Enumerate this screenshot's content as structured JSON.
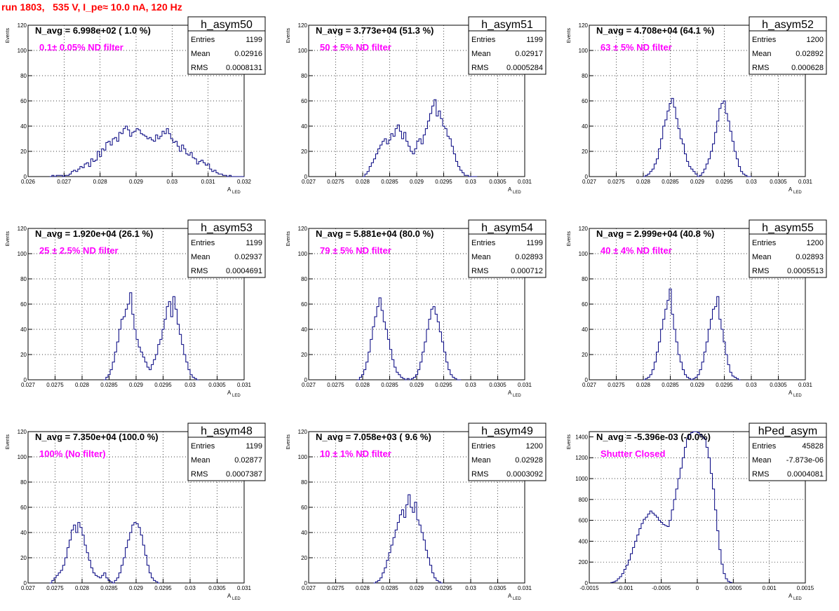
{
  "page": {
    "title": "run 1803,   535 V, I_pe≈ 10.0 nA, 120 Hz",
    "ylabel": "Events",
    "xlabel_main": "A",
    "xlabel_sub": "LED"
  },
  "colors": {
    "title": "#ff0000",
    "histogram": "#00007f",
    "annotation": "#ff00ff",
    "grid": "#000000"
  },
  "chart_data": [
    {
      "type": "bar",
      "hist_name": "h_asym50",
      "navg": "N_avg = 6.998e+02 ( 1.0 %)",
      "filter": "0.1± 0.05% ND filter",
      "stats": {
        "entries": "1199",
        "mean": "0.02916",
        "rms": "0.0008131"
      },
      "xlim": [
        0.026,
        0.032
      ],
      "ylim": [
        0,
        120
      ],
      "xticks": [
        "0.026",
        "0.027",
        "0.028",
        "0.029",
        "0.03",
        "0.031",
        "0.032"
      ],
      "yticks": [
        "0",
        "20",
        "40",
        "60",
        "80",
        "100",
        "120"
      ],
      "bin_start": 0.0266,
      "bin_width": 6e-05,
      "values": [
        0,
        1,
        0,
        1,
        1,
        1,
        0,
        1,
        1,
        2,
        4,
        5,
        4,
        6,
        8,
        7,
        10,
        11,
        8,
        14,
        12,
        13,
        20,
        16,
        22,
        21,
        27,
        28,
        25,
        30,
        31,
        28,
        35,
        34,
        38,
        40,
        37,
        32,
        35,
        36,
        38,
        37,
        34,
        33,
        32,
        30,
        31,
        29,
        28,
        33,
        30,
        32,
        36,
        34,
        38,
        34,
        30,
        27,
        28,
        24,
        20,
        25,
        22,
        18,
        17,
        19,
        15,
        14,
        10,
        12,
        13,
        11,
        9,
        10,
        6,
        4,
        5,
        3,
        2,
        2,
        1,
        1,
        0,
        1,
        0,
        0,
        0,
        0,
        0,
        0
      ]
    },
    {
      "type": "bar",
      "hist_name": "h_asym51",
      "navg": "N_avg = 3.773e+04 (51.3 %)",
      "filter": "50 ± 5% ND filter",
      "stats": {
        "entries": "1199",
        "mean": "0.02917",
        "rms": "0.0005284"
      },
      "xlim": [
        0.027,
        0.031
      ],
      "ylim": [
        0,
        120
      ],
      "xticks": [
        "0.027",
        "0.0275",
        "0.028",
        "0.0285",
        "0.029",
        "0.0295",
        "0.03",
        "0.0305",
        "0.031"
      ],
      "yticks": [
        "0",
        "20",
        "40",
        "60",
        "80",
        "100",
        "120"
      ],
      "bin_start": 0.028,
      "bin_width": 4e-05,
      "values": [
        0,
        2,
        4,
        8,
        11,
        14,
        18,
        22,
        25,
        28,
        30,
        26,
        29,
        34,
        32,
        38,
        41,
        36,
        30,
        35,
        28,
        24,
        20,
        18,
        22,
        28,
        30,
        26,
        33,
        38,
        44,
        50,
        56,
        61,
        48,
        52,
        46,
        40,
        38,
        32,
        30,
        24,
        18,
        12,
        8,
        5,
        3,
        1,
        1,
        0,
        0,
        0,
        0
      ]
    },
    {
      "type": "bar",
      "hist_name": "h_asym52",
      "navg": "N_avg = 4.708e+04 (64.1 %)",
      "filter": "63 ± 5% ND filter",
      "stats": {
        "entries": "1200",
        "mean": "0.02892",
        "rms": "0.000628"
      },
      "xlim": [
        0.027,
        0.031
      ],
      "ylim": [
        0,
        120
      ],
      "xticks": [
        "0.027",
        "0.0275",
        "0.028",
        "0.0285",
        "0.029",
        "0.0295",
        "0.03",
        "0.0305",
        "0.031"
      ],
      "yticks": [
        "0",
        "20",
        "40",
        "60",
        "80",
        "100",
        "120"
      ],
      "bin_start": 0.028,
      "bin_width": 4e-05,
      "values": [
        0,
        1,
        2,
        4,
        6,
        10,
        14,
        22,
        30,
        40,
        45,
        52,
        58,
        62,
        55,
        46,
        38,
        30,
        26,
        18,
        12,
        8,
        6,
        4,
        2,
        0,
        1,
        3,
        6,
        10,
        14,
        20,
        26,
        35,
        44,
        54,
        58,
        60,
        50,
        44,
        36,
        28,
        20,
        14,
        8,
        4,
        2,
        1,
        0,
        0
      ]
    },
    {
      "type": "bar",
      "hist_name": "h_asym53",
      "navg": "N_avg = 1.920e+04 (26.1 %)",
      "filter": "25 ± 2.5% ND filter",
      "stats": {
        "entries": "1199",
        "mean": "0.02937",
        "rms": "0.0004691"
      },
      "xlim": [
        0.027,
        0.031
      ],
      "ylim": [
        0,
        120
      ],
      "xticks": [
        "0.027",
        "0.0275",
        "0.028",
        "0.0285",
        "0.029",
        "0.0295",
        "0.03",
        "0.0305",
        "0.031"
      ],
      "yticks": [
        "0",
        "20",
        "40",
        "60",
        "80",
        "100",
        "120"
      ],
      "bin_start": 0.0284,
      "bin_width": 4e-05,
      "values": [
        0,
        2,
        4,
        8,
        14,
        22,
        30,
        40,
        48,
        50,
        56,
        60,
        69,
        52,
        40,
        32,
        26,
        22,
        18,
        14,
        10,
        8,
        12,
        16,
        20,
        28,
        32,
        40,
        48,
        58,
        62,
        50,
        66,
        56,
        44,
        36,
        28,
        20,
        14,
        8,
        4,
        2,
        1,
        0
      ]
    },
    {
      "type": "bar",
      "hist_name": "h_asym54",
      "navg": "N_avg = 5.881e+04 (80.0 %)",
      "filter": "79 ± 5% ND filter",
      "stats": {
        "entries": "1199",
        "mean": "0.02893",
        "rms": "0.000712"
      },
      "xlim": [
        0.027,
        0.031
      ],
      "ylim": [
        0,
        120
      ],
      "xticks": [
        "0.027",
        "0.0275",
        "0.028",
        "0.0285",
        "0.029",
        "0.0295",
        "0.03",
        "0.0305",
        "0.031"
      ],
      "yticks": [
        "0",
        "20",
        "40",
        "60",
        "80",
        "100",
        "120"
      ],
      "bin_start": 0.0279,
      "bin_width": 4e-05,
      "values": [
        0,
        2,
        4,
        8,
        14,
        22,
        32,
        42,
        50,
        58,
        65,
        55,
        46,
        40,
        32,
        24,
        16,
        10,
        6,
        4,
        2,
        1,
        0,
        1,
        0,
        1,
        2,
        4,
        8,
        14,
        22,
        30,
        40,
        48,
        56,
        58,
        52,
        46,
        38,
        30,
        22,
        14,
        8,
        4,
        2,
        1,
        0,
        0
      ]
    },
    {
      "type": "bar",
      "hist_name": "h_asym55",
      "navg": "N_avg = 2.999e+04 (40.8 %)",
      "filter": "40 ± 4% ND filter",
      "stats": {
        "entries": "1200",
        "mean": "0.02893",
        "rms": "0.0005513"
      },
      "xlim": [
        0.027,
        0.031
      ],
      "ylim": [
        0,
        120
      ],
      "xticks": [
        "0.027",
        "0.0275",
        "0.028",
        "0.0285",
        "0.029",
        "0.0295",
        "0.03",
        "0.0305",
        "0.031"
      ],
      "yticks": [
        "0",
        "20",
        "40",
        "60",
        "80",
        "100",
        "120"
      ],
      "bin_start": 0.028,
      "bin_width": 4e-05,
      "values": [
        0,
        1,
        2,
        4,
        8,
        14,
        22,
        30,
        40,
        48,
        56,
        63,
        72,
        52,
        40,
        30,
        20,
        14,
        8,
        4,
        2,
        1,
        0,
        1,
        2,
        4,
        8,
        14,
        22,
        30,
        40,
        48,
        56,
        58,
        66,
        48,
        40,
        30,
        20,
        12,
        6,
        3,
        2,
        1,
        0
      ]
    },
    {
      "type": "bar",
      "hist_name": "h_asym48",
      "navg": "N_avg = 7.350e+04 (100.0 %)",
      "filter": "100% (No filter)",
      "stats": {
        "entries": "1199",
        "mean": "0.02877",
        "rms": "0.0007387"
      },
      "xlim": [
        0.027,
        0.031
      ],
      "ylim": [
        0,
        120
      ],
      "xticks": [
        "0.027",
        "0.0275",
        "0.028",
        "0.0285",
        "0.029",
        "0.0295",
        "0.03",
        "0.0305",
        "0.031"
      ],
      "yticks": [
        "0",
        "20",
        "40",
        "60",
        "80",
        "100",
        "120"
      ],
      "bin_start": 0.0274,
      "bin_width": 4e-05,
      "values": [
        0,
        2,
        4,
        6,
        8,
        10,
        14,
        20,
        28,
        34,
        42,
        46,
        40,
        48,
        44,
        38,
        30,
        24,
        18,
        12,
        8,
        6,
        5,
        4,
        6,
        8,
        4,
        2,
        1,
        0,
        2,
        4,
        8,
        14,
        20,
        28,
        34,
        40,
        46,
        48,
        47,
        44,
        38,
        30,
        22,
        14,
        8,
        4,
        2,
        1,
        0
      ]
    },
    {
      "type": "bar",
      "hist_name": "h_asym49",
      "navg": "N_avg = 7.058e+03 ( 9.6 %)",
      "filter": "10 ± 1% ND filter",
      "stats": {
        "entries": "1200",
        "mean": "0.02928",
        "rms": "0.0003092"
      },
      "xlim": [
        0.027,
        0.031
      ],
      "ylim": [
        0,
        120
      ],
      "xticks": [
        "0.027",
        "0.0275",
        "0.028",
        "0.0285",
        "0.029",
        "0.0295",
        "0.03",
        "0.0305",
        "0.031"
      ],
      "yticks": [
        "0",
        "20",
        "40",
        "60",
        "80",
        "100",
        "120"
      ],
      "bin_start": 0.0282,
      "bin_width": 4e-05,
      "values": [
        0,
        1,
        2,
        4,
        8,
        12,
        18,
        24,
        30,
        36,
        42,
        48,
        54,
        58,
        52,
        62,
        70,
        60,
        56,
        64,
        50,
        46,
        40,
        34,
        26,
        20,
        14,
        8,
        4,
        2,
        1,
        0
      ]
    },
    {
      "type": "bar",
      "hist_name": "hPed_asym",
      "navg": "N_avg = -5.396e-03 (-0.0%)",
      "filter": "Shutter Closed",
      "stats": {
        "entries": "45828",
        "mean": "-7.873e-06",
        "rms": "0.0004081"
      },
      "xlim": [
        -0.0015,
        0.0015
      ],
      "ylim": [
        0,
        1450
      ],
      "xticks": [
        "-0.0015",
        "-0.001",
        "-0.0005",
        "0",
        "0.0005",
        "0.001",
        "0.0015"
      ],
      "yticks": [
        "0",
        "200",
        "400",
        "600",
        "800",
        "1000",
        "1200",
        "1400"
      ],
      "bin_start": -0.0012,
      "bin_width": 3e-05,
      "values": [
        5,
        10,
        20,
        40,
        60,
        90,
        130,
        170,
        220,
        280,
        340,
        400,
        460,
        520,
        570,
        610,
        630,
        660,
        690,
        670,
        650,
        630,
        600,
        580,
        560,
        550,
        540,
        600,
        700,
        800,
        900,
        1000,
        1100,
        1200,
        1300,
        1380,
        1420,
        1440,
        1450,
        1460,
        1440,
        1420,
        1400,
        1380,
        1300,
        1200,
        1050,
        900,
        700,
        500,
        320,
        180,
        90,
        40,
        15,
        5
      ]
    }
  ]
}
